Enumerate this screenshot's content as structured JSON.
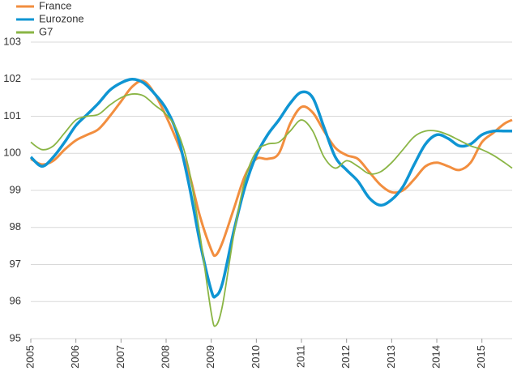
{
  "chart_data": {
    "type": "line",
    "x": [
      2005,
      2005.25,
      2005.5,
      2005.75,
      2006,
      2006.25,
      2006.5,
      2006.75,
      2007,
      2007.25,
      2007.5,
      2007.75,
      2008,
      2008.25,
      2008.5,
      2008.75,
      2009,
      2009.1,
      2009.25,
      2009.5,
      2009.75,
      2010,
      2010.25,
      2010.5,
      2010.75,
      2011,
      2011.25,
      2011.5,
      2011.75,
      2012,
      2012.25,
      2012.5,
      2012.75,
      2013,
      2013.25,
      2013.5,
      2013.75,
      2014,
      2014.25,
      2014.5,
      2014.75,
      2015,
      2015.25,
      2015.5,
      2015.67
    ],
    "series": [
      {
        "name": "France",
        "color": "#f28e3f",
        "values": [
          99.85,
          99.7,
          99.8,
          100.1,
          100.35,
          100.5,
          100.65,
          101.0,
          101.4,
          101.8,
          101.95,
          101.6,
          101.0,
          100.3,
          99.5,
          98.3,
          97.4,
          97.25,
          97.6,
          98.5,
          99.4,
          99.85,
          99.85,
          100.0,
          100.8,
          101.25,
          101.1,
          100.6,
          100.15,
          99.95,
          99.85,
          99.5,
          99.15,
          98.95,
          99.0,
          99.3,
          99.65,
          99.75,
          99.65,
          99.55,
          99.75,
          100.3,
          100.55,
          100.8,
          100.9
        ]
      },
      {
        "name": "Eurozone",
        "color": "#0f95d3",
        "values": [
          99.9,
          99.65,
          99.9,
          100.3,
          100.75,
          101.05,
          101.35,
          101.7,
          101.9,
          102.0,
          101.9,
          101.6,
          101.2,
          100.5,
          99.2,
          97.6,
          96.3,
          96.15,
          96.5,
          97.9,
          99.1,
          99.95,
          100.5,
          100.9,
          101.35,
          101.65,
          101.5,
          100.7,
          99.9,
          99.55,
          99.25,
          98.8,
          98.6,
          98.75,
          99.1,
          99.7,
          100.25,
          100.5,
          100.4,
          100.2,
          100.25,
          100.5,
          100.6,
          100.6,
          100.6
        ]
      },
      {
        "name": "G7",
        "color": "#8ab545",
        "values": [
          100.3,
          100.1,
          100.2,
          100.55,
          100.9,
          101.0,
          101.05,
          101.3,
          101.5,
          101.6,
          101.55,
          101.3,
          101.05,
          100.6,
          99.6,
          97.8,
          95.7,
          95.35,
          95.9,
          97.8,
          99.3,
          100.05,
          100.25,
          100.3,
          100.6,
          100.9,
          100.6,
          99.9,
          99.6,
          99.8,
          99.65,
          99.45,
          99.5,
          99.75,
          100.1,
          100.45,
          100.6,
          100.6,
          100.5,
          100.35,
          100.2,
          100.1,
          99.95,
          99.75,
          99.6
        ]
      }
    ],
    "xlim": [
      2005,
      2015.67
    ],
    "xticks": [
      2005,
      2006,
      2007,
      2008,
      2009,
      2010,
      2011,
      2012,
      2013,
      2014,
      2015
    ],
    "ylim": [
      95,
      103
    ],
    "yticks": [
      95,
      96,
      97,
      98,
      99,
      100,
      101,
      102,
      103
    ],
    "grid": true,
    "legend": "top-left"
  }
}
